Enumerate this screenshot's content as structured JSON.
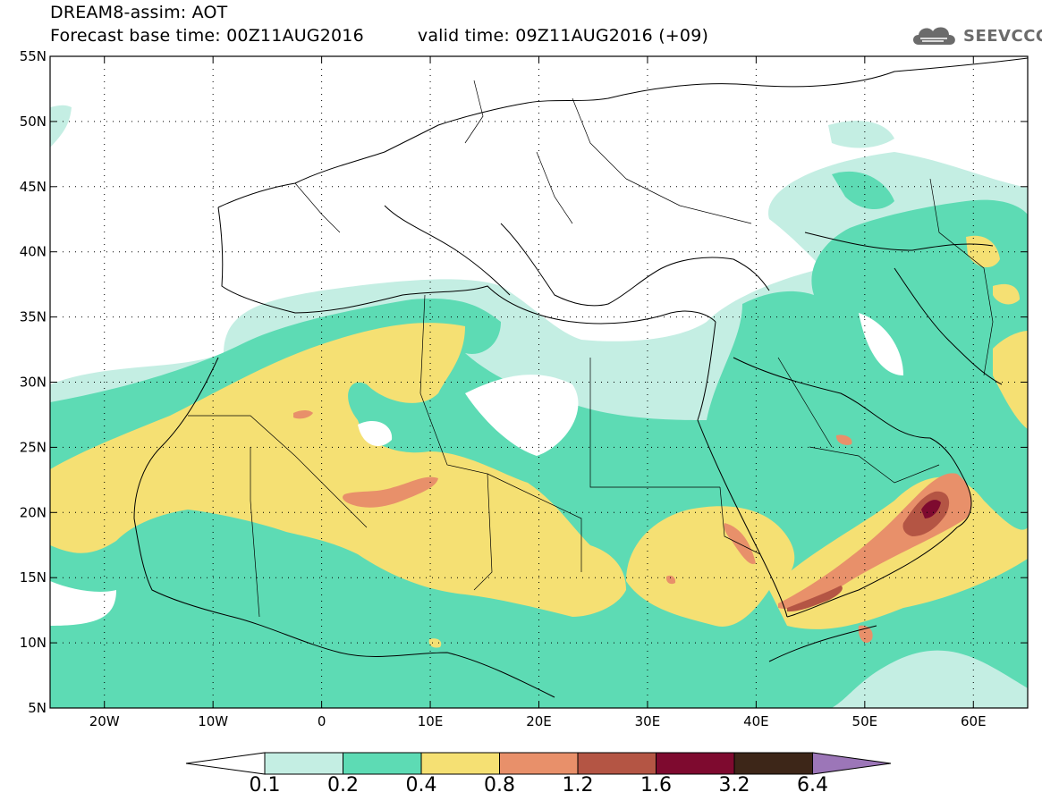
{
  "header": {
    "title_line1": "DREAM8-assim: AOT",
    "base_time": "Forecast base time: 00Z11AUG2016",
    "valid_time": "valid time: 09Z11AUG2016 (+09)"
  },
  "logo": {
    "text": "SEEVCCC",
    "icon": "cloud-icon"
  },
  "map": {
    "projection": "lat-lon",
    "lon_range": [
      -25,
      65
    ],
    "lat_range": [
      5,
      55
    ],
    "lat_labels": [
      "55N",
      "50N",
      "45N",
      "40N",
      "35N",
      "30N",
      "25N",
      "20N",
      "15N",
      "10N",
      "5N"
    ],
    "lon_labels": [
      "20W",
      "10W",
      "0",
      "10E",
      "20E",
      "30E",
      "40E",
      "50E",
      "60E"
    ],
    "field": "aerosol optical thickness (dust)",
    "features": [
      "Saharan dust plume over West Africa and Atlantic coast",
      "Dust maximum over Arabian Peninsula and Yemen/Oman"
    ]
  },
  "colorbar": {
    "labels": [
      "0.1",
      "0.2",
      "0.4",
      "0.8",
      "1.2",
      "1.6",
      "3.2",
      "6.4"
    ],
    "colors": [
      "#c4eee3",
      "#5ddbb4",
      "#f5e073",
      "#e8906a",
      "#b45544",
      "#7e0a2f",
      "#3d2618",
      "#9c76b8"
    ]
  }
}
